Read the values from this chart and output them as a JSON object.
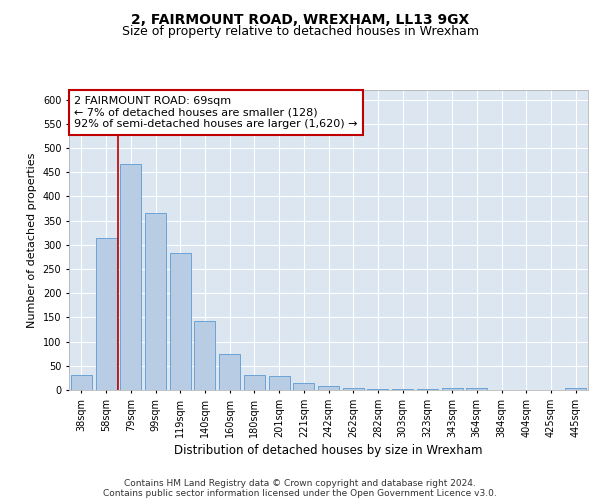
{
  "title1": "2, FAIRMOUNT ROAD, WREXHAM, LL13 9GX",
  "title2": "Size of property relative to detached houses in Wrexham",
  "xlabel": "Distribution of detached houses by size in Wrexham",
  "ylabel": "Number of detached properties",
  "categories": [
    "38sqm",
    "58sqm",
    "79sqm",
    "99sqm",
    "119sqm",
    "140sqm",
    "160sqm",
    "180sqm",
    "201sqm",
    "221sqm",
    "242sqm",
    "262sqm",
    "282sqm",
    "303sqm",
    "323sqm",
    "343sqm",
    "364sqm",
    "384sqm",
    "404sqm",
    "425sqm",
    "445sqm"
  ],
  "values": [
    30,
    315,
    468,
    365,
    283,
    142,
    75,
    32,
    28,
    15,
    8,
    5,
    3,
    2,
    2,
    5,
    5,
    1,
    1,
    0,
    5
  ],
  "bar_color": "#b8cce4",
  "bar_edge_color": "#5b9bd5",
  "vline_x": 1.5,
  "vline_color": "#c00000",
  "annotation_text": "2 FAIRMOUNT ROAD: 69sqm\n← 7% of detached houses are smaller (128)\n92% of semi-detached houses are larger (1,620) →",
  "annotation_box_color": "#ffffff",
  "annotation_box_edge": "#c00000",
  "ylim": [
    0,
    620
  ],
  "yticks": [
    0,
    50,
    100,
    150,
    200,
    250,
    300,
    350,
    400,
    450,
    500,
    550,
    600
  ],
  "background_color": "#dce6f1",
  "footnote1": "Contains HM Land Registry data © Crown copyright and database right 2024.",
  "footnote2": "Contains public sector information licensed under the Open Government Licence v3.0.",
  "title1_fontsize": 10,
  "title2_fontsize": 9,
  "xlabel_fontsize": 8.5,
  "ylabel_fontsize": 8,
  "tick_fontsize": 7,
  "annotation_fontsize": 8,
  "footnote_fontsize": 6.5
}
